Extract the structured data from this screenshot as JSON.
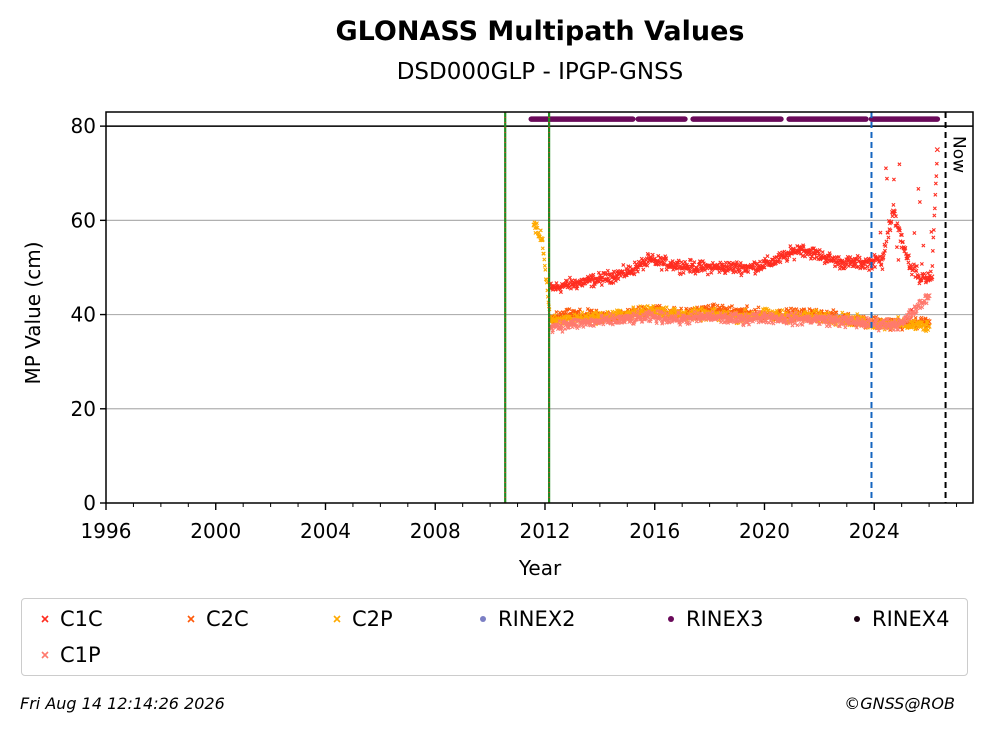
{
  "chart_data": {
    "type": "scatter",
    "title": "GLONASS Multipath Values",
    "subtitle": "DSD000GLP - IPGP-GNSS",
    "xlabel": "Year",
    "ylabel": "MP Value (cm)",
    "xlim": [
      1996,
      2027.6
    ],
    "ylim": [
      0,
      83
    ],
    "xticks": [
      1996,
      2000,
      2004,
      2008,
      2012,
      2016,
      2020,
      2024
    ],
    "yticks": [
      0,
      20,
      40,
      60,
      80
    ],
    "grid": "horizontal",
    "now_label": "Now",
    "vertical_lines": [
      {
        "x": 2010.55,
        "color": "#228b22",
        "style": "dashdot-red-green"
      },
      {
        "x": 2012.15,
        "color": "#228b22",
        "style": "dashdot-red-green"
      },
      {
        "x": 2023.9,
        "color": "#1565c0",
        "style": "dashed"
      },
      {
        "x": 2026.6,
        "color": "#000000",
        "style": "dashed",
        "label": "Now"
      }
    ],
    "reference_line": {
      "y": 80
    },
    "series": [
      {
        "name": "C1C",
        "color": "#ff2d20",
        "marker": "x",
        "points": [
          [
            2012.2,
            45.5
          ],
          [
            2013,
            46.5
          ],
          [
            2014,
            47.5
          ],
          [
            2015,
            49
          ],
          [
            2015.8,
            51.5
          ],
          [
            2016.8,
            50.5
          ],
          [
            2017.5,
            50
          ],
          [
            2018.5,
            50
          ],
          [
            2019.5,
            50
          ],
          [
            2020.2,
            51
          ],
          [
            2020.8,
            52.5
          ],
          [
            2021.3,
            54
          ],
          [
            2021.8,
            53
          ],
          [
            2022.3,
            52
          ],
          [
            2022.8,
            51
          ],
          [
            2023.2,
            51
          ],
          [
            2023.9,
            51
          ],
          [
            2024.3,
            52
          ],
          [
            2024.7,
            62
          ],
          [
            2024.9,
            58
          ],
          [
            2025.3,
            50
          ],
          [
            2025.7,
            47.5
          ],
          [
            2026.1,
            48
          ],
          [
            2026.3,
            75
          ]
        ]
      },
      {
        "name": "C2C",
        "color": "#ff5a0a",
        "marker": "x",
        "points": [
          [
            2012.2,
            39
          ],
          [
            2013,
            40
          ],
          [
            2014,
            39.5
          ],
          [
            2015,
            40
          ],
          [
            2016,
            41
          ],
          [
            2017,
            40
          ],
          [
            2018,
            41
          ],
          [
            2019,
            40.5
          ],
          [
            2020,
            40
          ],
          [
            2021,
            40
          ],
          [
            2022,
            40
          ],
          [
            2023,
            39
          ],
          [
            2024,
            38.5
          ],
          [
            2025,
            38
          ],
          [
            2026,
            38.5
          ]
        ]
      },
      {
        "name": "C2P",
        "color": "#ffaa00",
        "marker": "x",
        "points": [
          [
            2011.6,
            59
          ],
          [
            2011.9,
            56
          ],
          [
            2012.2,
            38.5
          ],
          [
            2013,
            39
          ],
          [
            2014,
            39.5
          ],
          [
            2015,
            40
          ],
          [
            2016,
            41
          ],
          [
            2017,
            40
          ],
          [
            2018,
            40
          ],
          [
            2019,
            39.5
          ],
          [
            2020,
            40
          ],
          [
            2021,
            39.5
          ],
          [
            2022,
            39.5
          ],
          [
            2023,
            39
          ],
          [
            2024,
            38
          ],
          [
            2025,
            38
          ],
          [
            2026,
            37.5
          ]
        ]
      },
      {
        "name": "RINEX2",
        "color": "#7b7fc4",
        "marker": "dot",
        "points": []
      },
      {
        "name": "RINEX3",
        "color": "#6a0a5a",
        "marker": "dot",
        "y": 81.5,
        "segments": [
          [
            2011.5,
            2015.2
          ],
          [
            2015.4,
            2017.1
          ],
          [
            2017.4,
            2020.6
          ],
          [
            2020.9,
            2023.7
          ],
          [
            2023.9,
            2026.3
          ]
        ]
      },
      {
        "name": "RINEX4",
        "color": "#1a0010",
        "marker": "dot",
        "points": []
      },
      {
        "name": "C1P",
        "color": "#ff7a6e",
        "marker": "x",
        "points": [
          [
            2012.2,
            37.5
          ],
          [
            2013,
            38
          ],
          [
            2014,
            38.5
          ],
          [
            2015,
            39
          ],
          [
            2016,
            39.5
          ],
          [
            2017,
            39
          ],
          [
            2018,
            39.5
          ],
          [
            2019,
            39
          ],
          [
            2020,
            39.5
          ],
          [
            2021,
            39
          ],
          [
            2022,
            39
          ],
          [
            2023,
            38.5
          ],
          [
            2024,
            38
          ],
          [
            2025,
            38
          ],
          [
            2026,
            44
          ]
        ]
      }
    ]
  },
  "footer": {
    "timestamp": "Fri Aug 14 12:14:26 2026",
    "copyright": "©GNSS@ROB"
  }
}
